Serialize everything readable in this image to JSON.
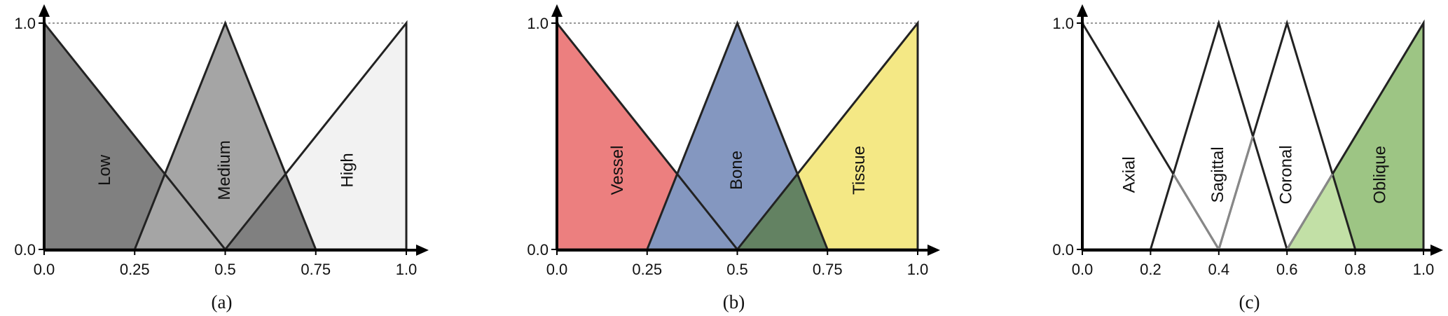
{
  "chart_data": [
    {
      "type": "area",
      "caption": "(a)",
      "xlim": [
        0,
        1
      ],
      "ylim": [
        0,
        1
      ],
      "x_ticks": [
        "0.0",
        "0.25",
        "0.5",
        "0.75",
        "1.0"
      ],
      "y_ticks": [
        "0.0",
        "1.0"
      ],
      "series": [
        {
          "name": "Low",
          "points": [
            [
              0,
              1
            ],
            [
              0,
              0
            ],
            [
              0.5,
              0
            ]
          ],
          "color": "#808080"
        },
        {
          "name": "Medium",
          "points": [
            [
              0.25,
              0
            ],
            [
              0.5,
              1
            ],
            [
              0.75,
              0
            ]
          ],
          "color": "#a5a5a5"
        },
        {
          "name": "High",
          "points": [
            [
              0.5,
              0
            ],
            [
              1,
              1
            ],
            [
              1,
              0
            ]
          ],
          "color": "#f2f2f2"
        }
      ],
      "overlap_colors": [
        "#595959",
        "#808080"
      ]
    },
    {
      "type": "area",
      "caption": "(b)",
      "xlim": [
        0,
        1
      ],
      "ylim": [
        0,
        1
      ],
      "x_ticks": [
        "0.0",
        "0.25",
        "0.5",
        "0.75",
        "1.0"
      ],
      "y_ticks": [
        "0.0",
        "1.0"
      ],
      "series": [
        {
          "name": "Vessel",
          "points": [
            [
              0,
              1
            ],
            [
              0,
              0
            ],
            [
              0.5,
              0
            ]
          ],
          "color": "#ec7f7f"
        },
        {
          "name": "Bone",
          "points": [
            [
              0.25,
              0
            ],
            [
              0.5,
              1
            ],
            [
              0.75,
              0
            ]
          ],
          "color": "#8497c0"
        },
        {
          "name": "Tissue",
          "points": [
            [
              0.5,
              0
            ],
            [
              1,
              1
            ],
            [
              1,
              0
            ]
          ],
          "color": "#f4e885"
        }
      ],
      "overlap_colors": [
        "#625270",
        "#638262"
      ]
    },
    {
      "type": "area",
      "caption": "(c)",
      "xlim": [
        0,
        1
      ],
      "ylim": [
        0,
        1
      ],
      "x_ticks": [
        "0.0",
        "0.2",
        "0.4",
        "0.6",
        "0.8",
        "1.0"
      ],
      "y_ticks": [
        "0.0",
        "1.0"
      ],
      "series": [
        {
          "name": "Axial",
          "points": [
            [
              0,
              1
            ],
            [
              0,
              0
            ],
            [
              0.4,
              0
            ]
          ],
          "color": "#ffffff"
        },
        {
          "name": "Sagittal",
          "points": [
            [
              0.2,
              0
            ],
            [
              0.4,
              1
            ],
            [
              0.6,
              0
            ]
          ],
          "color": "#ffffff"
        },
        {
          "name": "Coronal",
          "points": [
            [
              0.4,
              0
            ],
            [
              0.6,
              1
            ],
            [
              0.8,
              0
            ]
          ],
          "color": "#ffffff"
        },
        {
          "name": "Oblique",
          "points": [
            [
              0.6,
              0
            ],
            [
              1,
              1
            ],
            [
              1,
              0
            ]
          ],
          "color": "#9dc584"
        }
      ],
      "overlap_colors": [
        "#c2e0a6"
      ]
    }
  ]
}
